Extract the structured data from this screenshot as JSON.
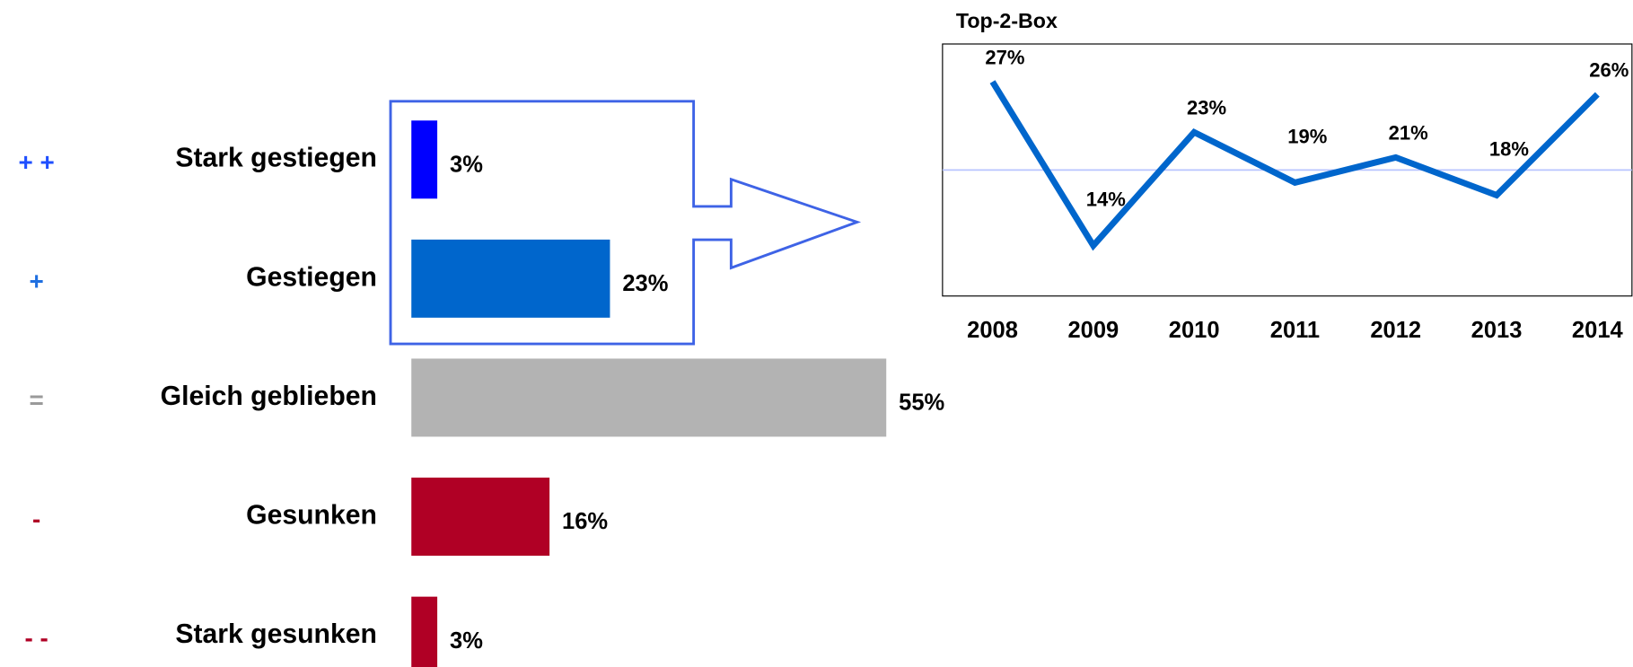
{
  "chart_data": [
    {
      "type": "hbar",
      "symbols": [
        "+ +",
        "+",
        "=",
        "-",
        "- -"
      ],
      "symbol_colors": [
        "#1f4fff",
        "#1f6fe0",
        "#9a9a9a",
        "#b00025",
        "#b00025"
      ],
      "categories": [
        "Stark gestiegen",
        "Gestiegen",
        "Gleich geblieben",
        "Gesunken",
        "Stark gesunken"
      ],
      "values": [
        3,
        23,
        55,
        16,
        3
      ],
      "value_labels": [
        "3%",
        "23%",
        "55%",
        "16%",
        "3%"
      ],
      "colors": [
        "#0000ff",
        "#0066cc",
        "#b3b3b3",
        "#b00025",
        "#b00025"
      ],
      "xlim": [
        0,
        55
      ]
    },
    {
      "type": "line",
      "title": "Top-2-Box",
      "categories": [
        "2008",
        "2009",
        "2010",
        "2011",
        "2012",
        "2013",
        "2014"
      ],
      "values": [
        27,
        14,
        23,
        19,
        21,
        18,
        26
      ],
      "value_labels": [
        "27%",
        "14%",
        "23%",
        "19%",
        "21%",
        "18%",
        "26%"
      ],
      "color": "#0066cc",
      "reference_line": 20,
      "reference_color": "#b8c4ff",
      "ylim": [
        10,
        30
      ]
    }
  ]
}
